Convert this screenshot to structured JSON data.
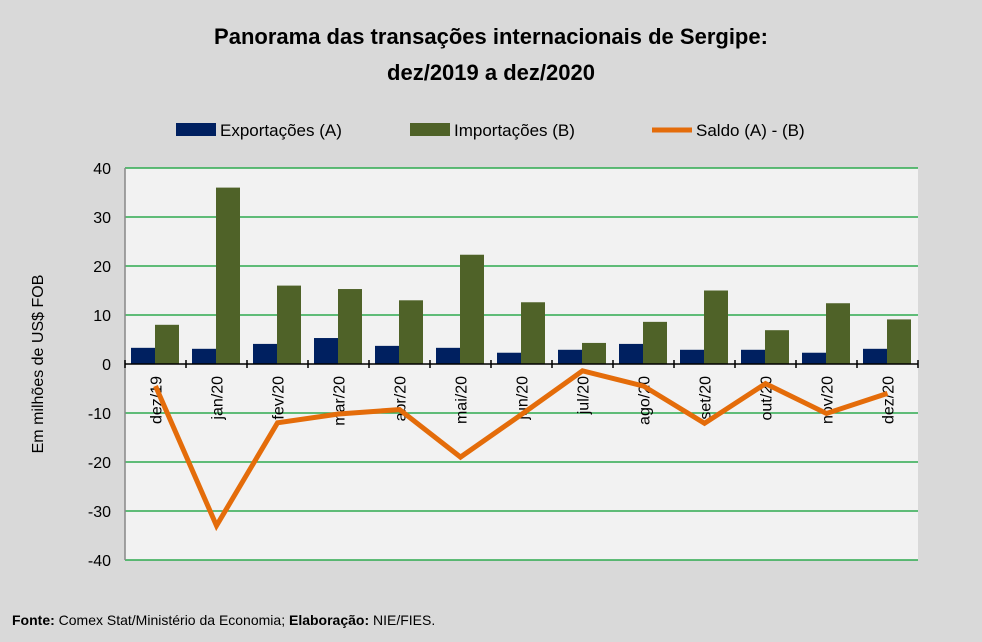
{
  "chart_data": {
    "type": "bar",
    "title": [
      "Panorama  das transações internacionais de Sergipe:",
      "dez/2019 a dez/2020"
    ],
    "xlabel": "",
    "ylabel": "Em milhões de US$ FOB",
    "ylim": [
      -40,
      40
    ],
    "yticks": [
      40,
      30,
      20,
      10,
      0,
      -10,
      -20,
      -30,
      -40
    ],
    "grid": true,
    "legend_position": "top",
    "categories": [
      "dez/19",
      "jan/20",
      "fev/20",
      "mar/20",
      "abr/20",
      "mai/20",
      "jun/20",
      "jul/20",
      "ago/20",
      "set/20",
      "out/20",
      "nov/20",
      "dez/20"
    ],
    "series": [
      {
        "name": "Exportações (A)",
        "kind": "bar",
        "color": "#002060",
        "values": [
          3.3,
          3.1,
          4.1,
          5.3,
          3.7,
          3.3,
          2.3,
          2.9,
          4.1,
          2.9,
          2.9,
          2.3,
          3.1
        ]
      },
      {
        "name": "Importações (B)",
        "kind": "bar",
        "color": "#4f6228",
        "values": [
          8.0,
          36.0,
          16.0,
          15.3,
          13.0,
          22.3,
          12.6,
          4.3,
          8.6,
          15.0,
          6.9,
          12.4,
          9.1
        ]
      },
      {
        "name": "Saldo (A) - (B)",
        "kind": "line",
        "color": "#e46c0a",
        "values": [
          -4.5,
          -33.0,
          -12.0,
          -10.2,
          -9.3,
          -19.0,
          -10.3,
          -1.4,
          -4.5,
          -12.1,
          -4.0,
          -10.1,
          -6.0
        ]
      }
    ]
  },
  "source": {
    "label1": "Fonte:",
    "text1": " Comex Stat/Ministério da Economia; ",
    "label2": "Elaboração:",
    "text2": " NIE/FIES."
  }
}
